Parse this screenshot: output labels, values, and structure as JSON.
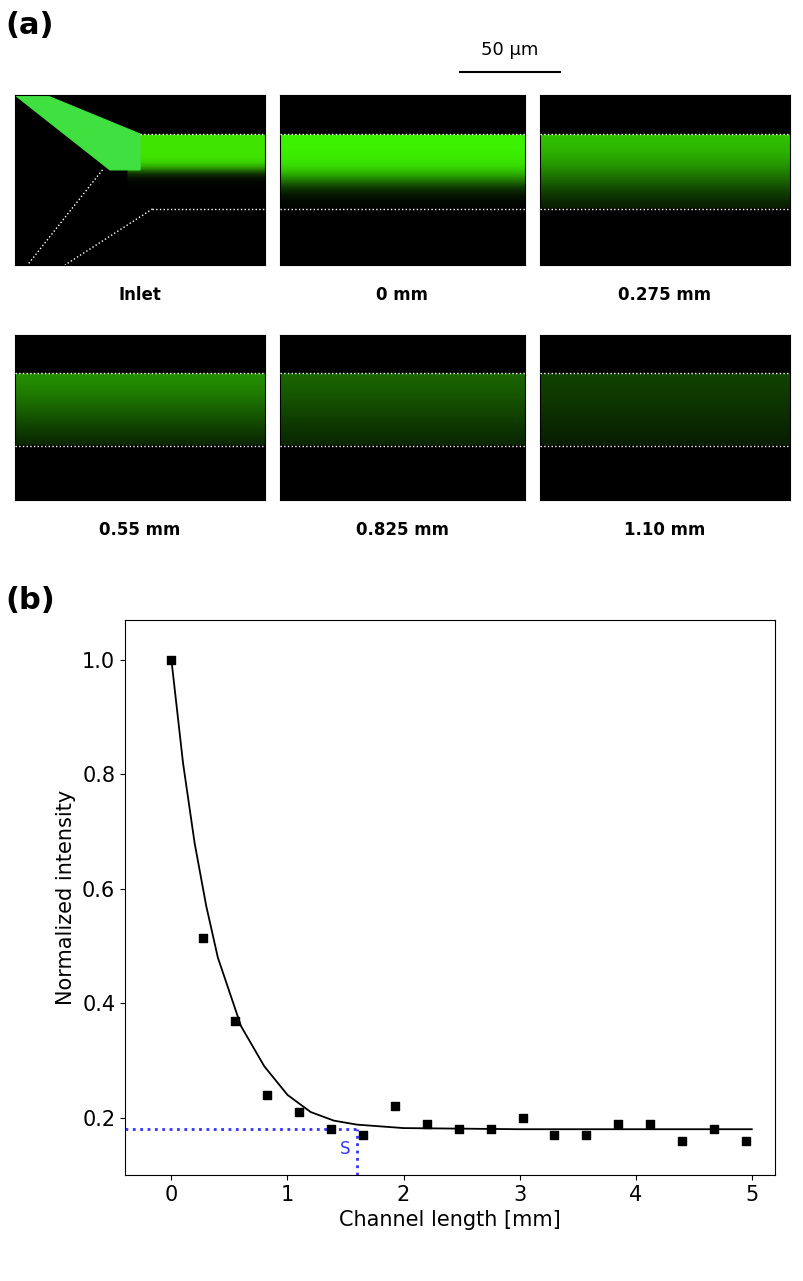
{
  "image_panel": {
    "label": "(a)",
    "scale_bar": "50 μm",
    "images": [
      "Inlet",
      "0 mm",
      "0.275 mm",
      "0.55 mm",
      "0.825 mm",
      "1.10 mm"
    ]
  },
  "chart_data": {
    "type": "scatter",
    "title": "(b)",
    "x_label": "Channel length [mm]",
    "y_label": "Normalized intensity",
    "xlim": [
      -0.4,
      5.2
    ],
    "ylim": [
      0.1,
      1.07
    ],
    "xticks": [
      0,
      1,
      2,
      3,
      4,
      5
    ],
    "yticks": [
      0.2,
      0.4,
      0.6,
      0.8,
      1.0
    ],
    "series": [
      {
        "type": "scatter",
        "color": "#000000",
        "marker": "square",
        "x": [
          0,
          0.275,
          0.55,
          0.825,
          1.1,
          1.375,
          1.65,
          1.925,
          2.2,
          2.475,
          2.75,
          3.025,
          3.3,
          3.575,
          3.85,
          4.125,
          4.4,
          4.675,
          4.95
        ],
        "values": [
          1.0,
          0.515,
          0.37,
          0.24,
          0.21,
          0.18,
          0.17,
          0.22,
          0.19,
          0.18,
          0.18,
          0.2,
          0.17,
          0.17,
          0.19,
          0.19,
          0.16,
          0.18,
          0.16
        ]
      },
      {
        "type": "line",
        "color": "#000000",
        "line_style": "solid",
        "x": [
          0,
          0.1,
          0.2,
          0.3,
          0.4,
          0.5,
          0.6,
          0.8,
          1.0,
          1.2,
          1.4,
          1.6,
          2.0,
          3.0,
          4.0,
          5.0
        ],
        "values": [
          1.0,
          0.82,
          0.68,
          0.57,
          0.48,
          0.42,
          0.36,
          0.29,
          0.24,
          0.21,
          0.195,
          0.188,
          0.182,
          0.18,
          0.18,
          0.18
        ]
      }
    ],
    "reference": {
      "x": 1.6,
      "y": 0.18,
      "color": "#3333ff",
      "line_style": "dotted"
    },
    "annotations": [
      {
        "text": "S",
        "x": 1.5,
        "y": 0.145,
        "color": "#3333ff"
      }
    ]
  }
}
